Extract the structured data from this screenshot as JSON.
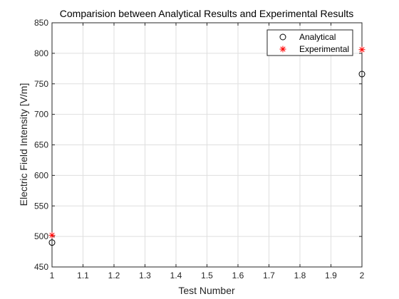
{
  "chart_data": {
    "type": "scatter",
    "title": "Comparision between Analytical Results and Experimental Results",
    "xlabel": "Test Number",
    "ylabel": "Electric Field Intensity [V/m]",
    "xlim": [
      1,
      2
    ],
    "ylim": [
      450,
      850
    ],
    "x_ticks": [
      "1",
      "1.1",
      "1.2",
      "1.3",
      "1.4",
      "1.5",
      "1.6",
      "1.7",
      "1.8",
      "1.9",
      "2"
    ],
    "y_ticks": [
      "450",
      "500",
      "550",
      "600",
      "650",
      "700",
      "750",
      "800",
      "850"
    ],
    "grid": true,
    "legend_position": "top-right",
    "series": [
      {
        "name": "Analytical",
        "marker": "circle",
        "color": "#000000",
        "x": [
          1,
          2
        ],
        "y": [
          490,
          766
        ]
      },
      {
        "name": "Experimental",
        "marker": "asterisk",
        "color": "#ff0000",
        "x": [
          1,
          2
        ],
        "y": [
          502,
          806
        ]
      }
    ]
  }
}
